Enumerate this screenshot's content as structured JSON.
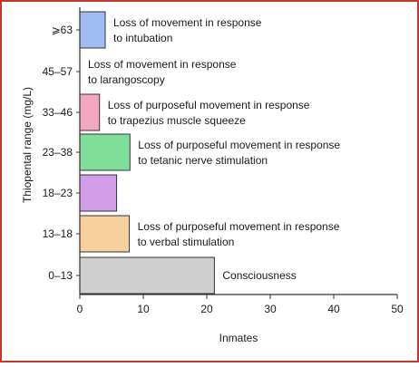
{
  "chart_data": {
    "type": "bar",
    "orientation": "horizontal",
    "xlabel": "Inmates",
    "ylabel": "Thiopental range (mg/L)",
    "xlim": [
      0,
      50
    ],
    "xticks": [
      0,
      10,
      20,
      30,
      40,
      50
    ],
    "grid": false,
    "categories": [
      "0–13",
      "13–18",
      "18–23",
      "23–38",
      "33–46",
      "45–57",
      "⩾63"
    ],
    "values": [
      21.2,
      7.8,
      5.8,
      7.9,
      3.1,
      0,
      4.0
    ],
    "bar_colors": [
      "#cfcfcf",
      "#f7cf9c",
      "#d39ee8",
      "#7fde9a",
      "#f2a6c0",
      "#ffffff",
      "#9fbbf2"
    ],
    "annotations": [
      [
        "Consciousness"
      ],
      [
        "Loss of purposeful movement in response",
        "to verbal stimulation"
      ],
      [],
      [
        "Loss of purposeful movement in response",
        "to tetanic nerve stimulation"
      ],
      [
        "Loss of purposeful movement in response",
        "to trapezius muscle squeeze"
      ],
      [
        "Loss of movement in response",
        "to larangoscopy"
      ],
      [
        "Loss of movement in response",
        "to intubation"
      ]
    ]
  },
  "colors": {
    "frame_border": "#c0392b",
    "axis": "#333333",
    "bar_stroke": "#333333"
  }
}
